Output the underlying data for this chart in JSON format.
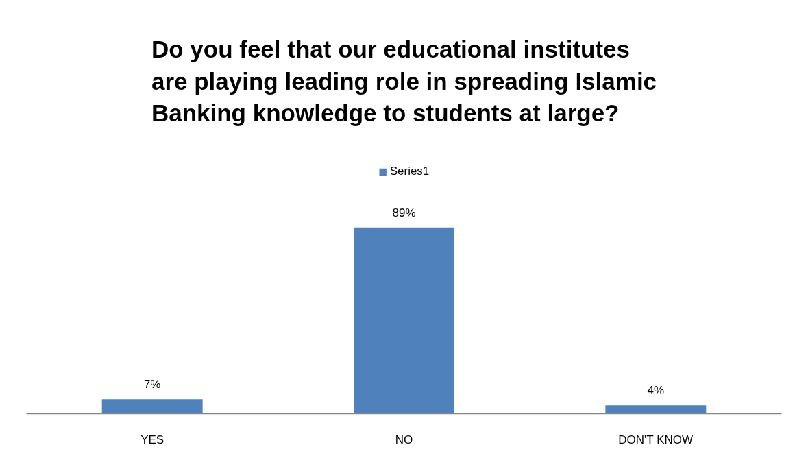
{
  "chart_data": {
    "type": "bar",
    "title": "Do you feel that our educational institutes are playing leading role in spreading Islamic Banking knowledge to students at large?",
    "categories": [
      "YES",
      "NO",
      "DON'T KNOW"
    ],
    "series": [
      {
        "name": "Series1",
        "color": "#4f81bd",
        "values": [
          7,
          89,
          4
        ],
        "value_labels": [
          "7%",
          "89%",
          "4%"
        ]
      }
    ],
    "legend": "top",
    "tick_labels": "x"
  }
}
